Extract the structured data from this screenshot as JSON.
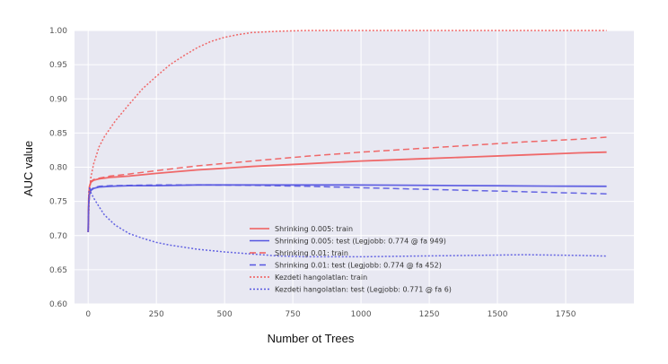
{
  "chart_data": {
    "type": "line",
    "title": "",
    "xlabel": "Number ot Trees",
    "ylabel": "AUC value",
    "xlim": [
      -50,
      2000
    ],
    "ylim": [
      0.6,
      1.0
    ],
    "xticks": [
      0,
      250,
      500,
      750,
      1000,
      1250,
      1500,
      1750
    ],
    "yticks": [
      0.6,
      0.65,
      0.7,
      0.75,
      0.8,
      0.85,
      0.9,
      0.95,
      1.0
    ],
    "ytick_labels": [
      "0.60",
      "0.65",
      "0.70",
      "0.75",
      "0.80",
      "0.85",
      "0.90",
      "0.95",
      "1.00"
    ],
    "grid": true,
    "legend_position": "bottom-center",
    "series": [
      {
        "name": "Shrinking 0.005: train",
        "color": "#f05a5a",
        "style": "solid",
        "x": [
          0,
          2,
          5,
          10,
          20,
          40,
          80,
          150,
          250,
          400,
          600,
          800,
          1000,
          1200,
          1400,
          1600,
          1800,
          1900
        ],
        "y": [
          0.705,
          0.755,
          0.772,
          0.778,
          0.781,
          0.783,
          0.785,
          0.787,
          0.791,
          0.796,
          0.801,
          0.805,
          0.809,
          0.812,
          0.815,
          0.818,
          0.821,
          0.822
        ]
      },
      {
        "name": "Shrinking 0.005: test (Legjobb: 0.774 @ fa 949)",
        "color": "#5555e0",
        "style": "solid",
        "x": [
          0,
          2,
          5,
          10,
          20,
          40,
          80,
          150,
          250,
          400,
          600,
          800,
          949,
          1100,
          1300,
          1500,
          1700,
          1900
        ],
        "y": [
          0.705,
          0.745,
          0.76,
          0.766,
          0.769,
          0.771,
          0.772,
          0.773,
          0.773,
          0.774,
          0.774,
          0.774,
          0.774,
          0.7738,
          0.7733,
          0.7728,
          0.7723,
          0.772
        ]
      },
      {
        "name": "Shrinking 0.01: train",
        "color": "#f05a5a",
        "style": "dashed",
        "x": [
          0,
          2,
          5,
          10,
          20,
          40,
          80,
          150,
          250,
          400,
          600,
          800,
          1000,
          1200,
          1400,
          1600,
          1800,
          1900
        ],
        "y": [
          0.705,
          0.76,
          0.774,
          0.779,
          0.782,
          0.784,
          0.787,
          0.79,
          0.795,
          0.802,
          0.809,
          0.816,
          0.822,
          0.827,
          0.832,
          0.837,
          0.841,
          0.844
        ]
      },
      {
        "name": "Shrinking 0.01: test (Legjobb: 0.774 @ fa 452)",
        "color": "#5555e0",
        "style": "dashed",
        "x": [
          0,
          2,
          5,
          10,
          20,
          40,
          80,
          150,
          250,
          452,
          600,
          800,
          1000,
          1200,
          1400,
          1600,
          1800,
          1900
        ],
        "y": [
          0.705,
          0.75,
          0.762,
          0.767,
          0.77,
          0.772,
          0.773,
          0.7735,
          0.774,
          0.774,
          0.7735,
          0.772,
          0.77,
          0.768,
          0.766,
          0.764,
          0.762,
          0.761
        ]
      },
      {
        "name": "Kezdeti hangolatlan: train",
        "color": "#f05a5a",
        "style": "dotted",
        "x": [
          0,
          5,
          10,
          20,
          40,
          60,
          100,
          150,
          200,
          250,
          300,
          350,
          400,
          450,
          500,
          550,
          600,
          700,
          800,
          1000,
          1500,
          1900
        ],
        "y": [
          0.705,
          0.765,
          0.785,
          0.805,
          0.83,
          0.845,
          0.868,
          0.892,
          0.915,
          0.933,
          0.95,
          0.963,
          0.975,
          0.984,
          0.99,
          0.994,
          0.997,
          0.999,
          1.0,
          1.0,
          1.0,
          1.0
        ]
      },
      {
        "name": "Kezdeti hangolatlan: test (Legjobb: 0.771 @ fa 6)",
        "color": "#5555e0",
        "style": "dotted",
        "x": [
          0,
          3,
          6,
          10,
          20,
          40,
          60,
          100,
          150,
          200,
          250,
          300,
          350,
          400,
          500,
          600,
          700,
          800,
          1000,
          1200,
          1400,
          1600,
          1800,
          1900
        ],
        "y": [
          0.705,
          0.765,
          0.771,
          0.763,
          0.755,
          0.742,
          0.73,
          0.715,
          0.703,
          0.696,
          0.69,
          0.686,
          0.683,
          0.68,
          0.676,
          0.673,
          0.67,
          0.669,
          0.669,
          0.67,
          0.671,
          0.672,
          0.671,
          0.67
        ]
      }
    ]
  }
}
